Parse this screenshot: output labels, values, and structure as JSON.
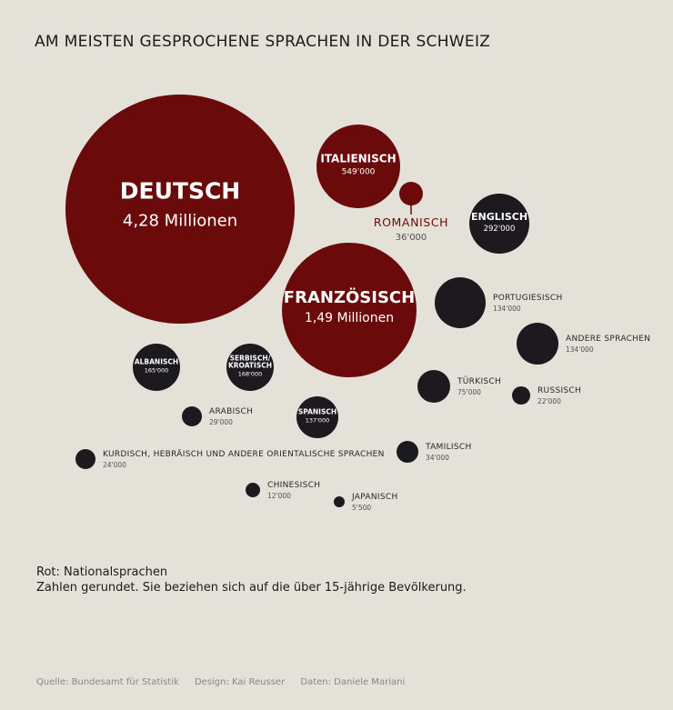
{
  "title": "AM MEISTEN GESPROCHENE SPRACHEN IN DER SCHWEIZ",
  "colors": {
    "national": "#6b0a0a",
    "other": "#1c1a1f",
    "background": "#e4e1d9"
  },
  "notes": {
    "legend": "Rot: Nationalsprachen",
    "rounding": "Zahlen gerundet. Sie beziehen sich auf die über 15-jährige Bevölkerung."
  },
  "credits": {
    "source": "Quelle: Bundesamt für Statistik",
    "design": "Design: Kai Reusser",
    "data": "Daten: Daniele Mariani"
  },
  "chart_data": {
    "type": "bubble",
    "unit": "Personen",
    "series": [
      {
        "name": "DEUTSCH",
        "label": "DEUTSCH",
        "value_label": "4,28 Millionen",
        "value": 4280000,
        "national": true
      },
      {
        "name": "FRANZÖSISCH",
        "label": "FRANZÖSISCH",
        "value_label": "1,49 Millionen",
        "value": 1490000,
        "national": true
      },
      {
        "name": "ITALIENISCH",
        "label": "ITALIENISCH",
        "value_label": "549'000",
        "value": 549000,
        "national": true
      },
      {
        "name": "ROMANISCH",
        "label": "ROMANISCH",
        "value_label": "36'000",
        "value": 36000,
        "national": true
      },
      {
        "name": "ENGLISCH",
        "label": "ENGLISCH",
        "value_label": "292'000",
        "value": 292000,
        "national": false
      },
      {
        "name": "PORTUGIESISCH",
        "label": "PORTUGIESISCH",
        "value_label": "134'000",
        "value": 134000,
        "national": false
      },
      {
        "name": "ANDERE SPRACHEN",
        "label": "ANDERE SPRACHEN",
        "value_label": "134'000",
        "value": 134000,
        "national": false
      },
      {
        "name": "ALBANISCH",
        "label": "ALBANISCH",
        "value_label": "165'000",
        "value": 165000,
        "national": false
      },
      {
        "name": "SERBISCH/KROATISCH",
        "label": "SERBISCH/\nKROATISCH",
        "value_label": "168'000",
        "value": 168000,
        "national": false
      },
      {
        "name": "TÜRKISCH",
        "label": "TÜRKISCH",
        "value_label": "75'000",
        "value": 75000,
        "national": false
      },
      {
        "name": "RUSSISCH",
        "label": "RUSSISCH",
        "value_label": "22'000",
        "value": 22000,
        "national": false
      },
      {
        "name": "ARABISCH",
        "label": "ARABISCH",
        "value_label": "29'000",
        "value": 29000,
        "national": false
      },
      {
        "name": "SPANISCH",
        "label": "SPANISCH",
        "value_label": "137'000",
        "value": 137000,
        "national": false
      },
      {
        "name": "KURDISCH, HEBRÄISCH UND ANDERE ORIENTALISCHE SPRACHEN",
        "label": "KURDISCH, HEBRÄISCH UND ANDERE ORIENTALISCHE SPRACHEN",
        "value_label": "24'000",
        "value": 24000,
        "national": false
      },
      {
        "name": "TAMILISCH",
        "label": "TAMILISCH",
        "value_label": "34'000",
        "value": 34000,
        "national": false
      },
      {
        "name": "CHINESISCH",
        "label": "CHINESISCH",
        "value_label": "12'000",
        "value": 12000,
        "national": false
      },
      {
        "name": "JAPANISCH",
        "label": "JAPANISCH",
        "value_label": "5'500",
        "value": 5500,
        "national": false
      }
    ]
  }
}
